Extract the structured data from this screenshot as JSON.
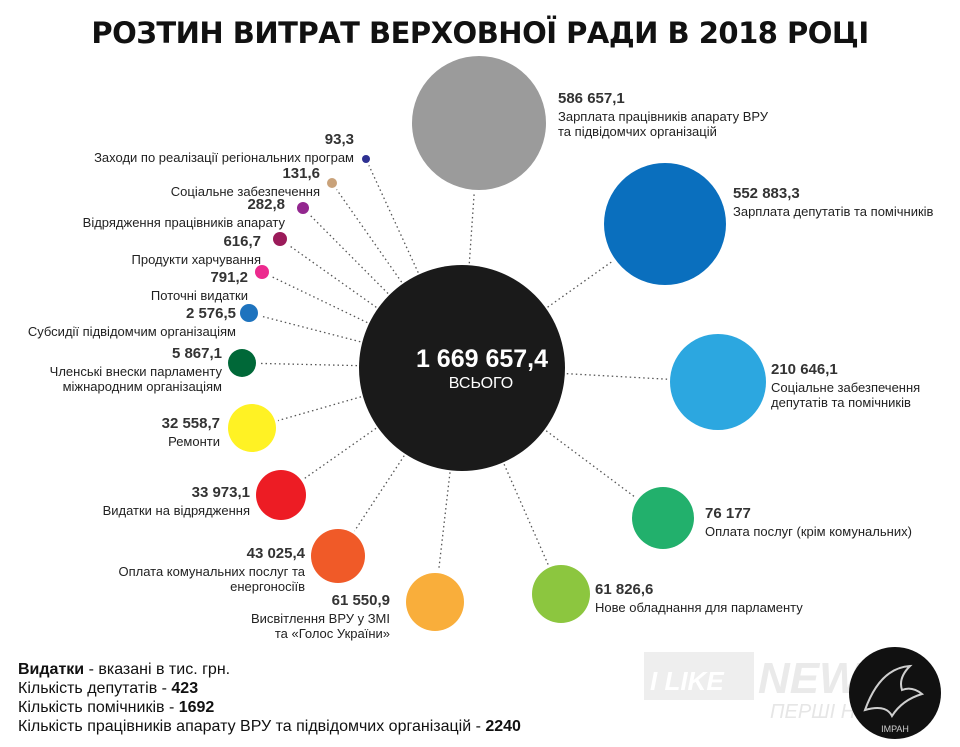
{
  "chart_data": {
    "type": "bubble",
    "title": "РОЗТИН ВИТРАТ ВЕРХОВНОЇ РАДИ В 2018 РОЦІ",
    "total": {
      "value": "1 669 657,4",
      "label": "ВСЬОГО",
      "color": "#1a1a1a"
    },
    "items": [
      {
        "value": "586 657,1",
        "label": [
          "Зарплата працівників апарату ВРУ",
          "та підвідомчих організацій"
        ],
        "num": 586657.1,
        "color": "#9b9b9b"
      },
      {
        "value": "552 883,3",
        "label": [
          "Зарплата депутатів та помічників"
        ],
        "num": 552883.3,
        "color": "#0a6fbe"
      },
      {
        "value": "210 646,1",
        "label": [
          "Соціальне забезпечення",
          "депутатів та помічників"
        ],
        "num": 210646.1,
        "color": "#2ca7e0"
      },
      {
        "value": "76 177",
        "label": [
          "Оплата послуг (крім комунальних)"
        ],
        "num": 76177,
        "color": "#22b06c"
      },
      {
        "value": "61 826,6",
        "label": [
          "Нове обладнання для парламенту"
        ],
        "num": 61826.6,
        "color": "#8cc63f"
      },
      {
        "value": "61 550,9",
        "label": [
          "Висвітлення ВРУ у ЗМІ",
          "та «Голос України»"
        ],
        "num": 61550.9,
        "color": "#f9ae3b"
      },
      {
        "value": "43 025,4",
        "label": [
          "Оплата комунальних послуг та",
          "енергоносіїв"
        ],
        "num": 43025.4,
        "color": "#f05a28"
      },
      {
        "value": "33 973,1",
        "label": [
          "Видатки на відрядження"
        ],
        "num": 33973.1,
        "color": "#ed1c24"
      },
      {
        "value": "32 558,7",
        "label": [
          "Ремонти"
        ],
        "num": 32558.7,
        "color": "#fff224"
      },
      {
        "value": "5 867,1",
        "label": [
          "Членські внески парламенту",
          "міжнародним організаціям"
        ],
        "num": 5867.1,
        "color": "#006838"
      },
      {
        "value": "2 576,5",
        "label": [
          "Субсидії підвідомчим організаціям"
        ],
        "num": 2576.5,
        "color": "#1e73be"
      },
      {
        "value": "791,2",
        "label": [
          "Поточні видатки"
        ],
        "num": 791.2,
        "color": "#ec2a8e"
      },
      {
        "value": "616,7",
        "label": [
          "Продукти харчування"
        ],
        "num": 616.7,
        "color": "#9b1b5a"
      },
      {
        "value": "282,8",
        "label": [
          "Відрядження працівників апарату"
        ],
        "num": 282.8,
        "color": "#93278f"
      },
      {
        "value": "131,6",
        "label": [
          "Соціальне забезпечення"
        ],
        "num": 131.6,
        "color": "#c9a27a"
      },
      {
        "value": "93,3",
        "label": [
          "Заходи по реалізації регіональних програм"
        ],
        "num": 93.3,
        "color": "#2e3192"
      }
    ]
  },
  "notes": {
    "units_bold": "Видатки",
    "units_rest": " - вказані в тис. грн.",
    "deputies_label": "Кількість депутатів - ",
    "deputies_value": "423",
    "assistants_label": "Кількість помічників - ",
    "assistants_value": "1692",
    "staff_label": "Кількість працівників апарату ВРУ та підвідомчих організацій - ",
    "staff_value": "2240"
  },
  "brand": {
    "text_like": "I LIKE",
    "text_news": "NEWS",
    "text_sub": "ПЕРШІ НОВИНИ",
    "logo_text": "IMPAH"
  }
}
